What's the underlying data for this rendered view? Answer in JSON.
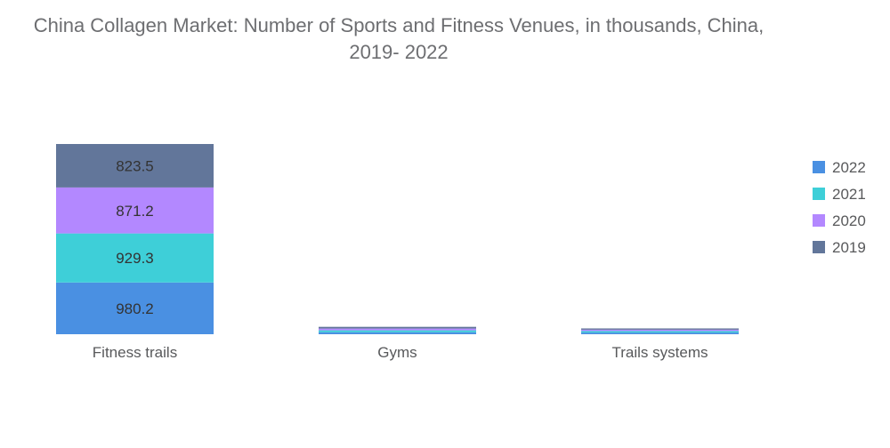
{
  "chart_data": {
    "type": "bar",
    "stacked": true,
    "title": "China Collagen Market: Number of Sports and Fitness Venues, in thousands, China, 2019- 2022",
    "title_lines": [
      "China Collagen Market: Number of Sports and Fitness Venues, in thousands, China,",
      "2019- 2022"
    ],
    "xlabel": "",
    "ylabel": "",
    "grid": false,
    "legend_position": "right",
    "categories": [
      "Fitness trails",
      "Gyms",
      "Trails systems"
    ],
    "series": [
      {
        "name": "2022",
        "color": "#4a90e2",
        "values": [
          980.2,
          38,
          32
        ],
        "labels": [
          "980.2",
          "",
          ""
        ]
      },
      {
        "name": "2021",
        "color": "#3ecfd8",
        "values": [
          929.3,
          36,
          28
        ],
        "labels": [
          "929.3",
          "",
          ""
        ]
      },
      {
        "name": "2020",
        "color": "#b388ff",
        "values": [
          871.2,
          34,
          26
        ],
        "labels": [
          "871.2",
          "",
          ""
        ]
      },
      {
        "name": "2019",
        "color": "#62769a",
        "values": [
          823.5,
          32,
          24
        ],
        "labels": [
          "823.5",
          "",
          ""
        ]
      }
    ],
    "legend_order": [
      "2022",
      "2021",
      "2020",
      "2019"
    ]
  }
}
